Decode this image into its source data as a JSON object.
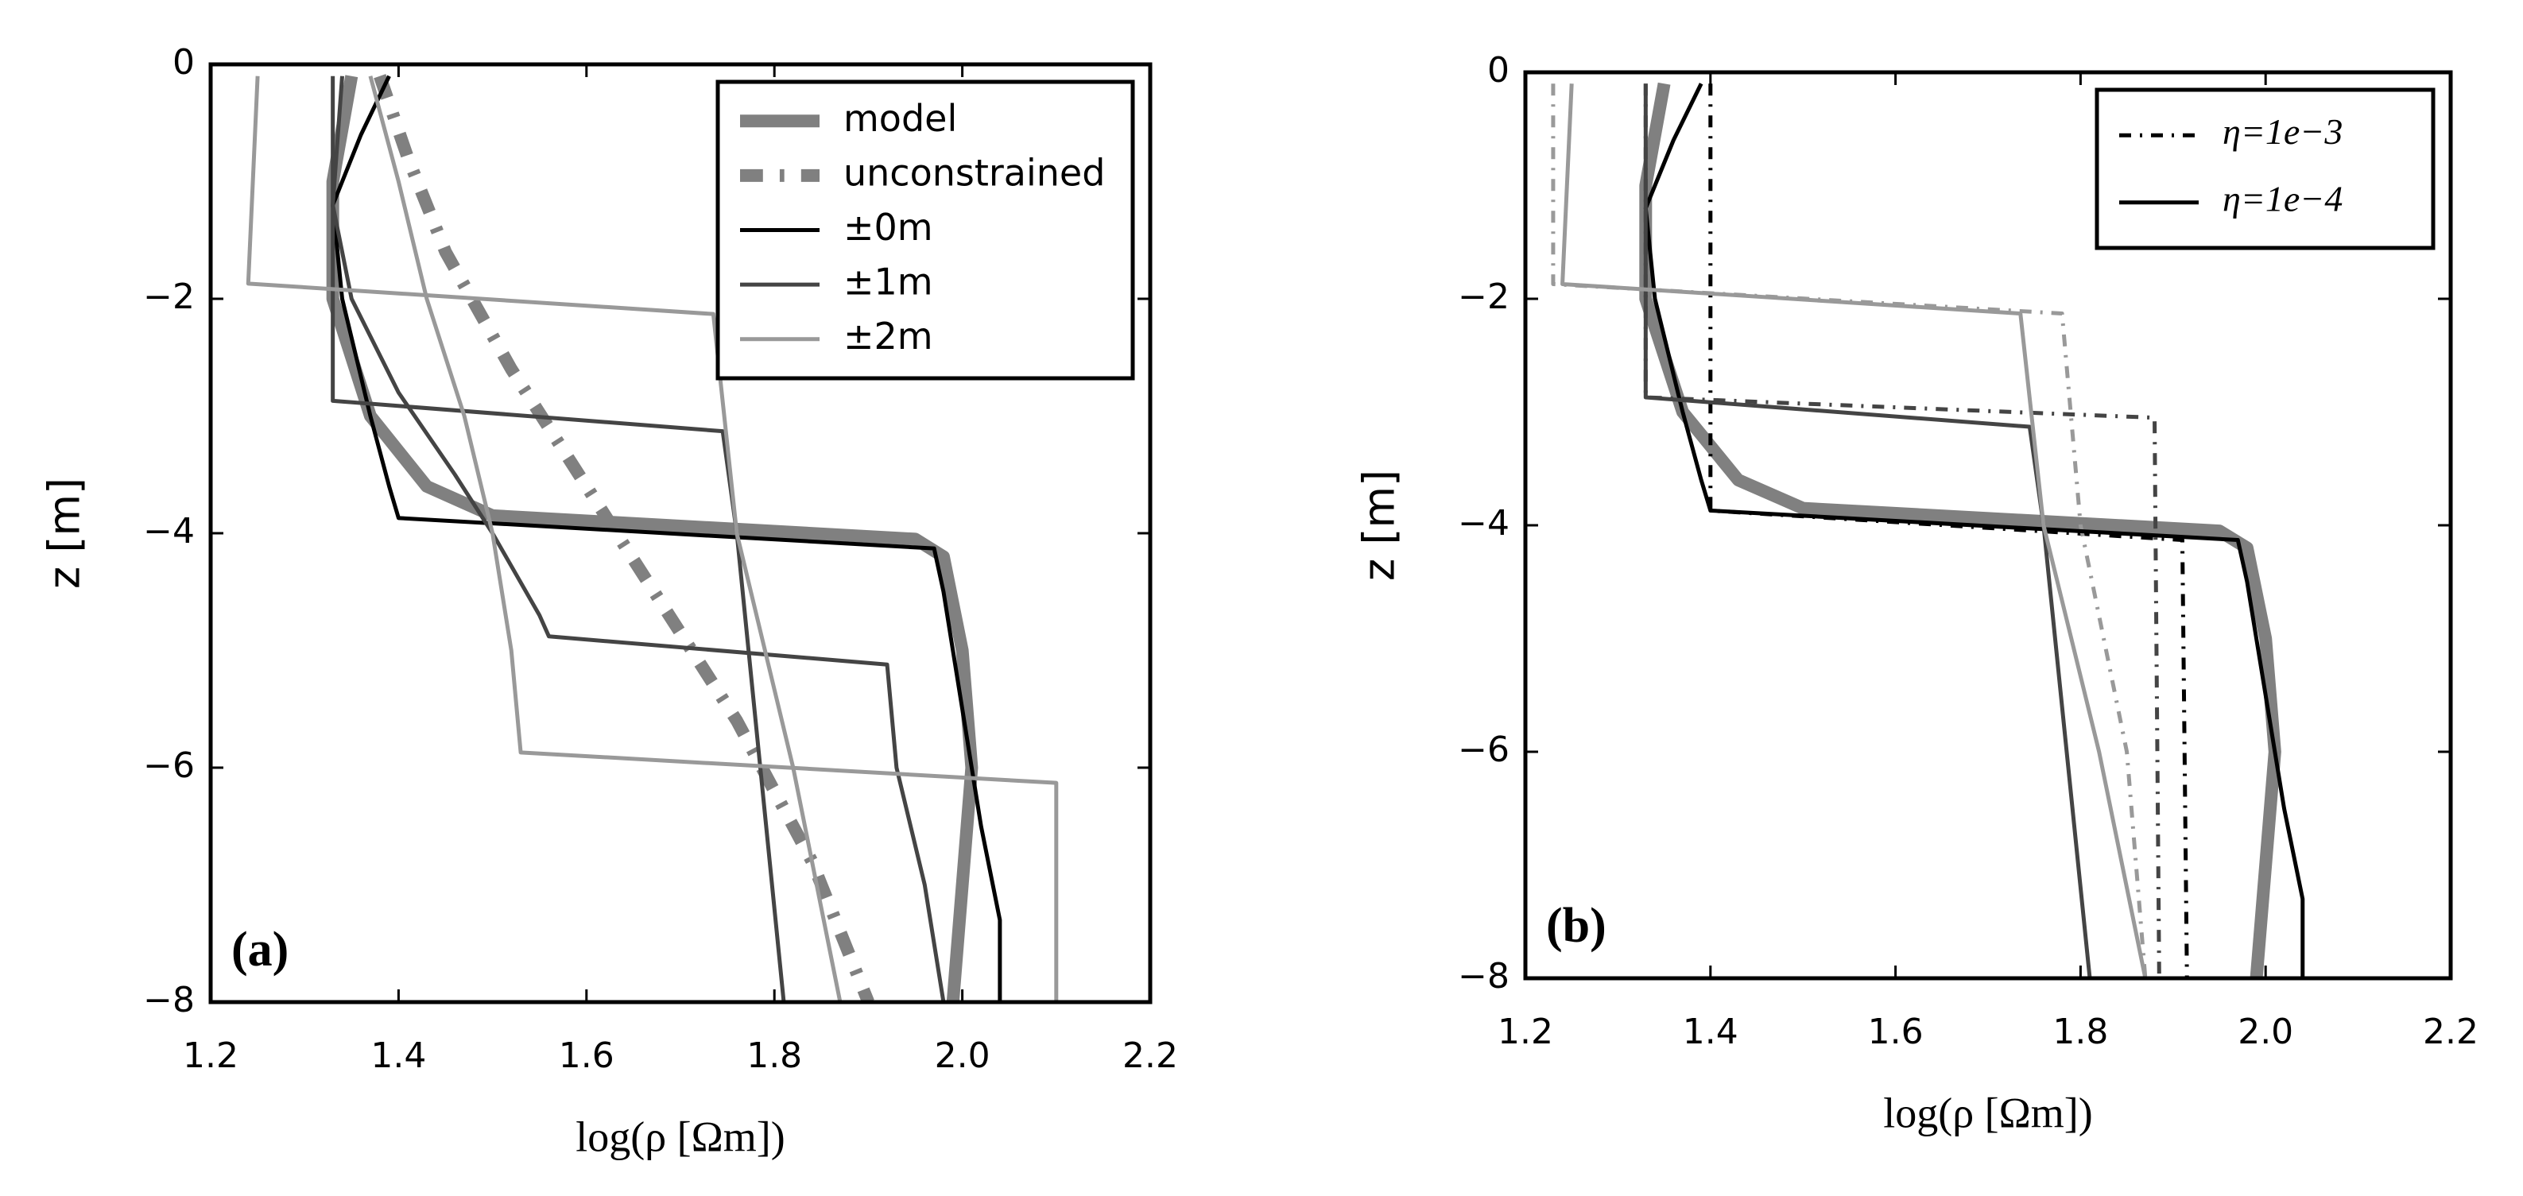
{
  "chart_data": [
    {
      "type": "line",
      "panel_label": "(a)",
      "xlabel": "log(ρ [Ωm])",
      "ylabel": "z [m]",
      "xlim": [
        1.2,
        2.2
      ],
      "ylim": [
        -8,
        0
      ],
      "xticks": [
        1.2,
        1.4,
        1.6,
        1.8,
        {
          "value": 2,
          "label": "2.0"
        },
        2.2
      ],
      "yticks": [
        {
          "value": -8,
          "label": "−8"
        },
        {
          "value": -6,
          "label": "−6"
        },
        {
          "value": -4,
          "label": "−4"
        },
        {
          "value": -2,
          "label": "−2"
        },
        0
      ],
      "legend": "upper right",
      "series": [
        {
          "name": "model",
          "color": "#808080",
          "linewidth": 16,
          "linestyle": "solid",
          "curves": [
            {
              "z": [
                -0.1,
                -1,
                -2,
                -3,
                -3.6,
                -3.85,
                -4.05,
                -4.2,
                -5,
                -6,
                -7,
                -8
              ],
              "values": [
                1.35,
                1.33,
                1.33,
                1.37,
                1.43,
                1.5,
                1.95,
                1.98,
                2.0,
                2.01,
                2.0,
                1.99
              ]
            }
          ]
        },
        {
          "name": "unconstrained",
          "color": "#808080",
          "linewidth": 16,
          "linestyle": "dashdot",
          "curves": [
            {
              "z": [
                -0.1,
                -0.8,
                -1.6,
                -2.6,
                -3.6,
                -4.6,
                -5.6,
                -6.8,
                -8
              ],
              "values": [
                1.38,
                1.41,
                1.45,
                1.52,
                1.6,
                1.68,
                1.76,
                1.84,
                1.9
              ]
            }
          ]
        },
        {
          "name": "±0m",
          "color": "#000000",
          "linewidth": 5,
          "linestyle": "solid",
          "curves": [
            {
              "z": [
                -0.1,
                -0.6,
                -1.2,
                -2,
                -3,
                -3.6,
                -3.87,
                -4.13,
                -4.5,
                -5.5,
                -6.5,
                -7.3,
                -8
              ],
              "values": [
                1.39,
                1.36,
                1.33,
                1.34,
                1.37,
                1.39,
                1.4,
                1.97,
                1.98,
                2.0,
                2.02,
                2.04,
                2.04
              ]
            }
          ]
        },
        {
          "name": "±1m",
          "color": "#444444",
          "linewidth": 5,
          "linestyle": "solid",
          "curves": [
            {
              "z": [
                -0.1,
                -2.87,
                -3.13,
                -4,
                -8
              ],
              "values": [
                1.33,
                1.33,
                1.745,
                1.76,
                1.81
              ]
            },
            {
              "z": [
                -0.1,
                -1.2,
                -2,
                -2.8,
                -3.5,
                -4,
                -4.7,
                -4.88,
                -5.12,
                -6,
                -7,
                -8
              ],
              "values": [
                1.34,
                1.33,
                1.35,
                1.4,
                1.46,
                1.5,
                1.55,
                1.56,
                1.92,
                1.93,
                1.96,
                1.98
              ]
            }
          ]
        },
        {
          "name": "±2m",
          "color": "#999999",
          "linewidth": 5,
          "linestyle": "solid",
          "curves": [
            {
              "z": [
                -0.1,
                -1.87,
                -2.13,
                -4,
                -6,
                -8
              ],
              "values": [
                1.25,
                1.24,
                1.735,
                1.76,
                1.82,
                1.87
              ]
            },
            {
              "z": [
                -0.1,
                -1,
                -2,
                -3,
                -4,
                -5,
                -5.87,
                -6.13,
                -8
              ],
              "values": [
                1.37,
                1.4,
                1.43,
                1.47,
                1.5,
                1.52,
                1.53,
                2.1,
                2.1
              ]
            }
          ]
        }
      ]
    },
    {
      "type": "line",
      "panel_label": "(b)",
      "xlabel": "log(ρ [Ωm])",
      "ylabel": "z [m]",
      "xlim": [
        1.2,
        2.2
      ],
      "ylim": [
        -8,
        0
      ],
      "xticks": [
        1.2,
        1.4,
        1.6,
        1.8,
        {
          "value": 2,
          "label": "2.0"
        },
        2.2
      ],
      "yticks": [
        {
          "value": -8,
          "label": "−8"
        },
        {
          "value": -6,
          "label": "−6"
        },
        {
          "value": -4,
          "label": "−4"
        },
        {
          "value": -2,
          "label": "−2"
        },
        0
      ],
      "legend": "upper right",
      "series": [
        {
          "color": "#808080",
          "linewidth": 16,
          "linestyle": "solid",
          "curves": [
            {
              "z": [
                -0.1,
                -1,
                -2,
                -3,
                -3.6,
                -3.85,
                -4.05,
                -4.2,
                -5,
                -6,
                -7,
                -8
              ],
              "values": [
                1.35,
                1.33,
                1.33,
                1.37,
                1.43,
                1.5,
                1.95,
                1.98,
                2.0,
                2.01,
                2.0,
                1.99
              ]
            }
          ]
        },
        {
          "name": "η=1e−3",
          "color": "#000000",
          "linewidth": 5,
          "linestyle": "dashdot",
          "curves": [
            {
              "color": "#000000",
              "z": [
                -0.1,
                -3.87,
                -4.13,
                -8
              ],
              "values": [
                1.4,
                1.4,
                1.91,
                1.915
              ]
            },
            {
              "color": "#444444",
              "z": [
                -0.1,
                -2.87,
                -3.05,
                -8
              ],
              "values": [
                1.33,
                1.33,
                1.88,
                1.885
              ]
            },
            {
              "color": "#999999",
              "z": [
                -0.1,
                -1.87,
                -2.13,
                -4,
                -6,
                -8
              ],
              "values": [
                1.23,
                1.23,
                1.78,
                1.8,
                1.85,
                1.87
              ]
            }
          ]
        },
        {
          "name": "η=1e−4",
          "color": "#000000",
          "linewidth": 5,
          "linestyle": "solid",
          "curves": [
            {
              "color": "#000000",
              "z": [
                -0.1,
                -0.6,
                -1.2,
                -2,
                -3,
                -3.6,
                -3.87,
                -4.13,
                -4.5,
                -5.5,
                -6.5,
                -7.3,
                -8
              ],
              "values": [
                1.39,
                1.36,
                1.33,
                1.34,
                1.37,
                1.39,
                1.4,
                1.97,
                1.98,
                2.0,
                2.02,
                2.04,
                2.04
              ]
            },
            {
              "color": "#444444",
              "z": [
                -0.1,
                -2.87,
                -3.13,
                -4,
                -8
              ],
              "values": [
                1.33,
                1.33,
                1.745,
                1.76,
                1.81
              ]
            },
            {
              "color": "#999999",
              "z": [
                -0.1,
                -1.87,
                -2.13,
                -4,
                -6,
                -8
              ],
              "values": [
                1.25,
                1.24,
                1.735,
                1.76,
                1.82,
                1.87
              ]
            }
          ]
        }
      ]
    }
  ]
}
